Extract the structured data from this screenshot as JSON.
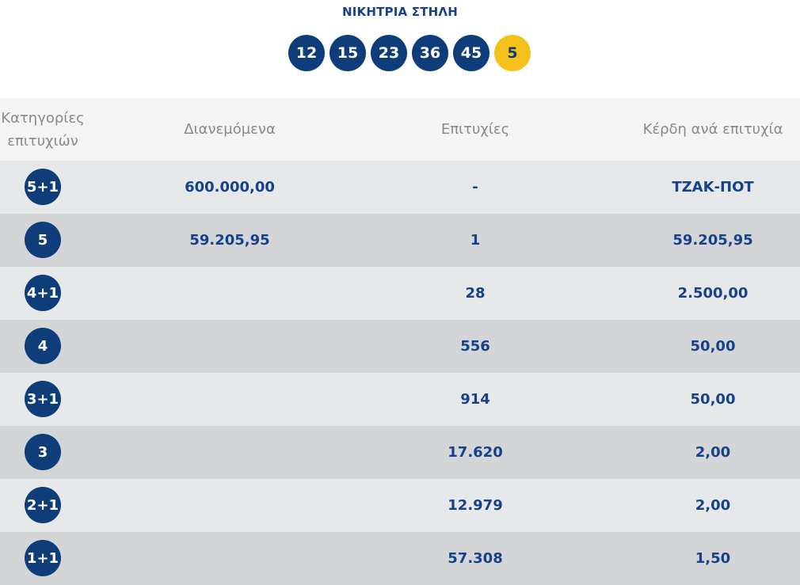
{
  "title": "ΝΙΚΗΤΡΙΑ ΣΤΗΛΗ",
  "winning_numbers": [
    "12",
    "15",
    "23",
    "36",
    "45"
  ],
  "bonus_number": "5",
  "headers": {
    "category": "Κατηγορίες επιτυχιών",
    "distributed": "Διανεμόμενα",
    "winners": "Επιτυχίες",
    "prize": "Κέρδη ανά επιτυχία"
  },
  "rows": [
    {
      "category": "5+1",
      "distributed": "600.000,00",
      "winners": "-",
      "prize": "ΤΖΑΚ-ΠΟΤ"
    },
    {
      "category": "5",
      "distributed": "59.205,95",
      "winners": "1",
      "prize": "59.205,95"
    },
    {
      "category": "4+1",
      "distributed": "",
      "winners": "28",
      "prize": "2.500,00"
    },
    {
      "category": "4",
      "distributed": "",
      "winners": "556",
      "prize": "50,00"
    },
    {
      "category": "3+1",
      "distributed": "",
      "winners": "914",
      "prize": "50,00"
    },
    {
      "category": "3",
      "distributed": "",
      "winners": "17.620",
      "prize": "2,00"
    },
    {
      "category": "2+1",
      "distributed": "",
      "winners": "12.979",
      "prize": "2,00"
    },
    {
      "category": "1+1",
      "distributed": "",
      "winners": "57.308",
      "prize": "1,50"
    }
  ],
  "colors": {
    "ball": "#0e3d7a",
    "bonus_ball": "#f4c01a",
    "value_text": "#15428b",
    "header_text": "#8a8a8a",
    "row_light": "#e7e8ea",
    "row_dark": "#d4d5d7"
  }
}
